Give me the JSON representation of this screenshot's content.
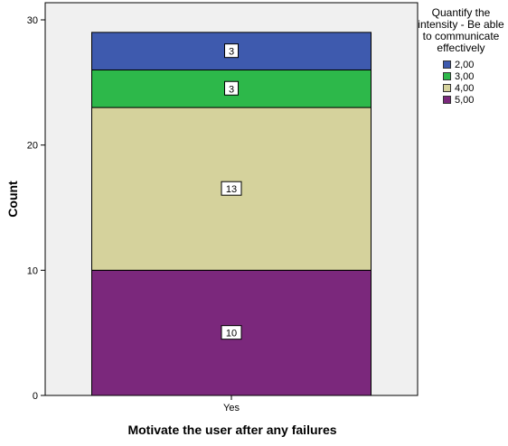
{
  "chart_data": {
    "type": "bar",
    "stacked": true,
    "categories": [
      "Yes"
    ],
    "series": [
      {
        "name": "5,00",
        "values": [
          10
        ],
        "color": "#7b287c"
      },
      {
        "name": "4,00",
        "values": [
          13
        ],
        "color": "#d5d29c"
      },
      {
        "name": "3,00",
        "values": [
          3
        ],
        "color": "#2db84a"
      },
      {
        "name": "2,00",
        "values": [
          3
        ],
        "color": "#3e5aae"
      }
    ],
    "xlabel": "Motivate the user after any failures",
    "ylabel": "Count",
    "ylim": [
      0,
      30
    ],
    "yticks": [
      0,
      10,
      20,
      30
    ],
    "grid": false,
    "legend": {
      "position": "right",
      "title": "Quantify the intensity - Be able to communicate effectively",
      "entries": [
        "2,00",
        "3,00",
        "4,00",
        "5,00"
      ]
    },
    "background_color": "#f0f0f0",
    "data_labels": true
  }
}
